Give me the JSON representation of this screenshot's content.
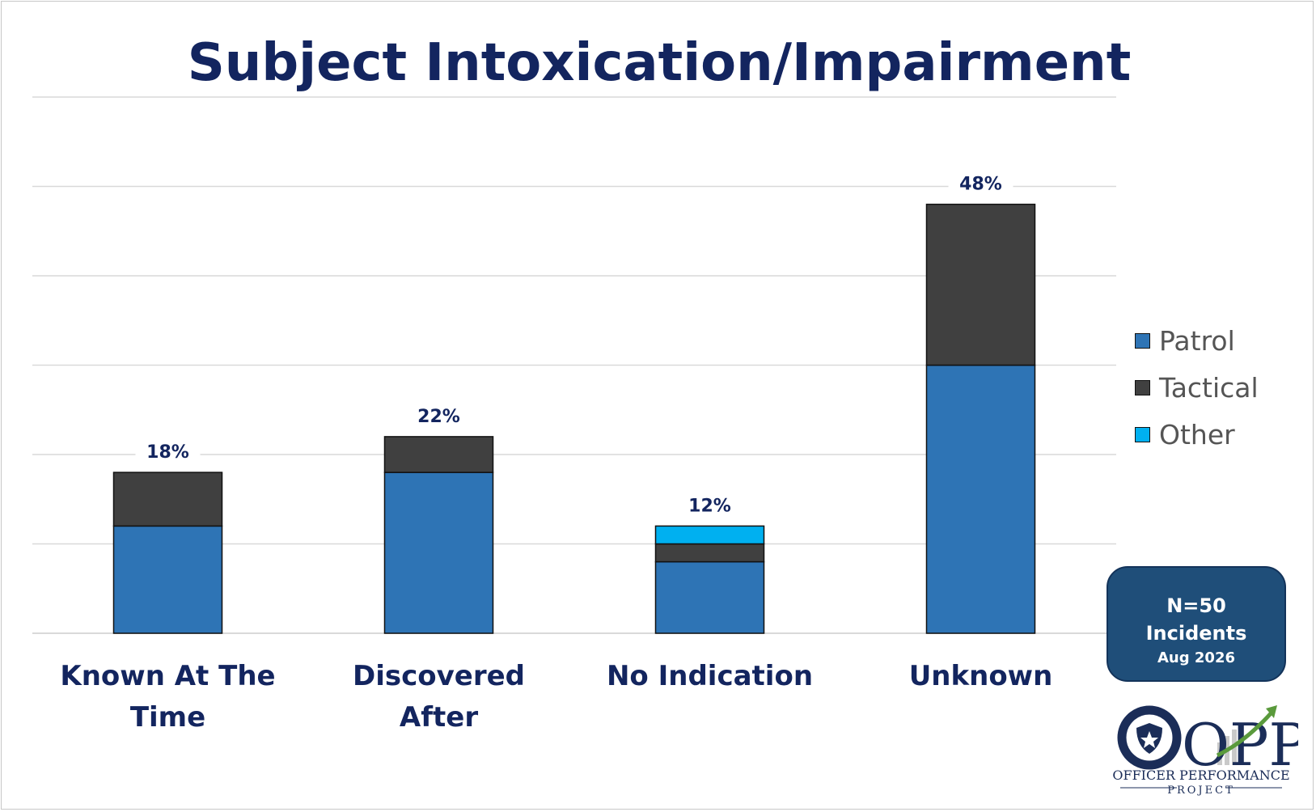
{
  "chart_data": {
    "type": "bar",
    "stacked": true,
    "title": "Subject Intoxication/Impairment",
    "categories": [
      "Known At The Time",
      "Discovered After",
      "No Indication",
      "Unknown"
    ],
    "series": [
      {
        "name": "Patrol",
        "color": "#2e74b5",
        "values": [
          12,
          18,
          8,
          30
        ]
      },
      {
        "name": "Tactical",
        "color": "#404040",
        "values": [
          6,
          4,
          2,
          18
        ]
      },
      {
        "name": "Other",
        "color": "#00b0f0",
        "values": [
          0,
          0,
          2,
          0
        ]
      }
    ],
    "totals_labels": [
      "18%",
      "22%",
      "12%",
      "48%"
    ],
    "ylim": [
      0,
      60
    ],
    "grid": true,
    "legend_position": "right"
  },
  "info_box": {
    "line1": "N=50",
    "line2": "Incidents",
    "line3": "Aug 2026"
  },
  "logo": {
    "letters": "OPP",
    "line1": "OFFICER PERFORMANCE",
    "line2": "PROJECT",
    "icon": "shield-star-icon"
  },
  "colors": {
    "title": "#13255f",
    "grid": "#d9d9d9",
    "box": "#1f4e79",
    "logo_navy": "#1b2d58",
    "arrow": "#5a9a3c"
  }
}
